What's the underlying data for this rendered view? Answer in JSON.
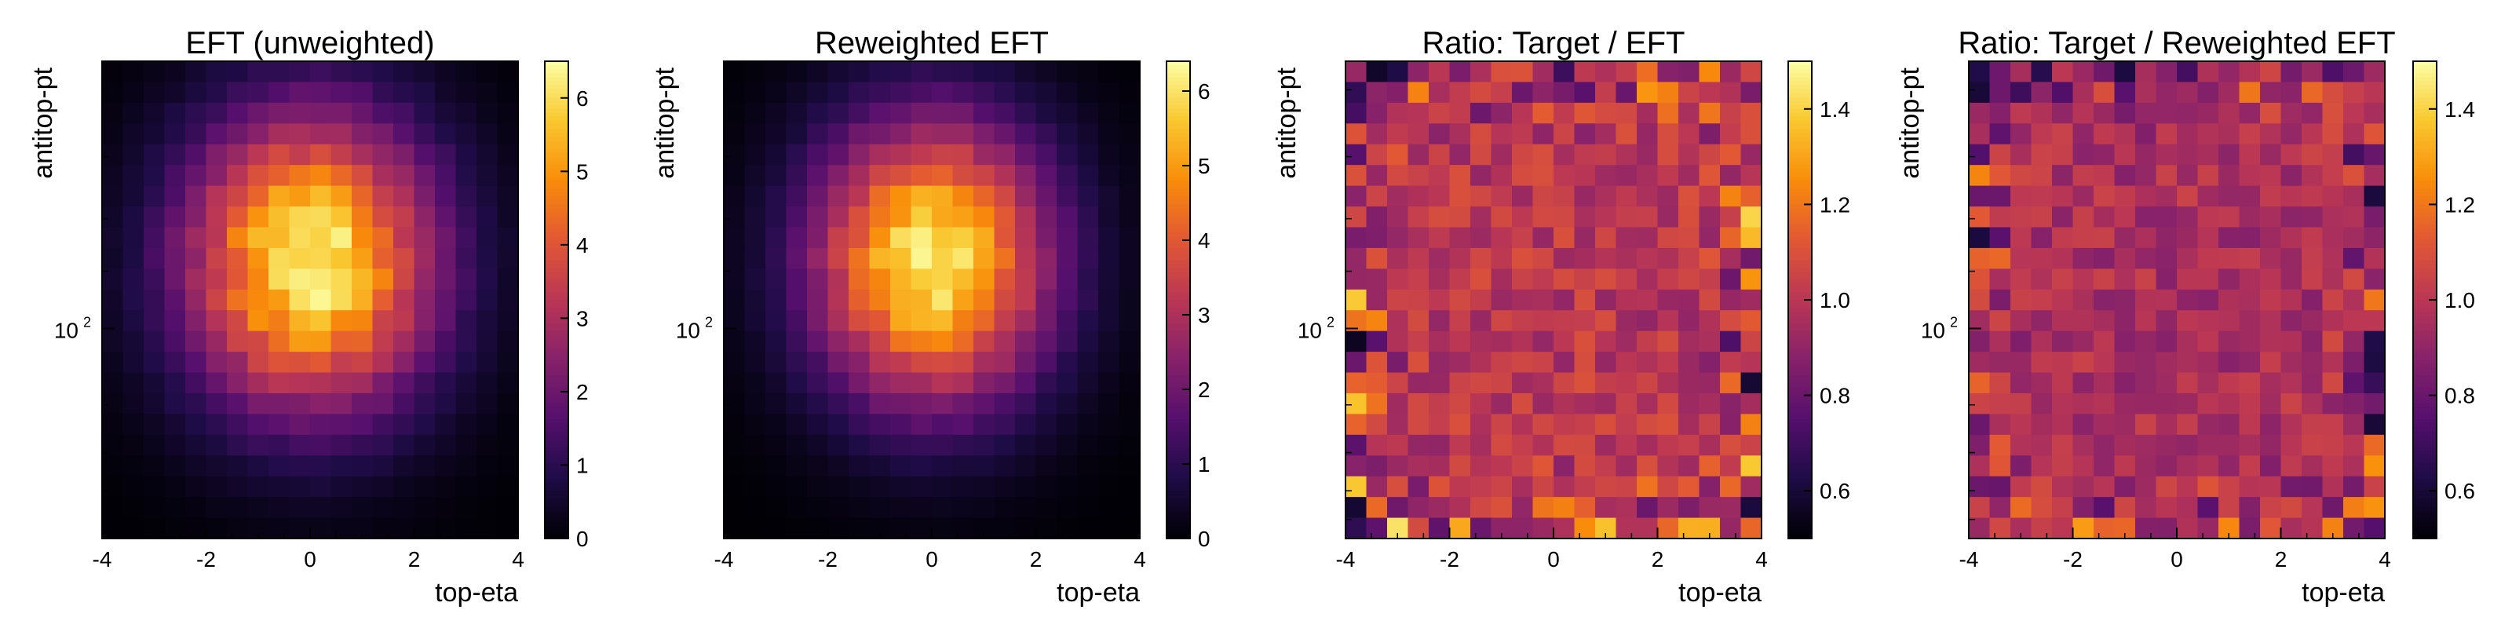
{
  "chart_data": [
    {
      "type": "heatmap",
      "title": "EFT (unweighted)",
      "xlabel": "top-eta",
      "ylabel": "antitop-pt",
      "xlim": [
        -4,
        4
      ],
      "y_scale": "log",
      "y_tick_labels": [
        {
          "base": "10",
          "exp": "2"
        }
      ],
      "colorbar": {
        "range": [
          0,
          6.5
        ],
        "ticks": [
          "0",
          "1",
          "2",
          "3",
          "4",
          "5",
          "6"
        ],
        "colormap": "inferno"
      },
      "grid": false,
      "model": {
        "kind": "gauss",
        "peak": 6.3,
        "x0": 0.0,
        "sx": 1.7,
        "y0": 0.42,
        "sy": 0.22,
        "noise": 0.18
      },
      "seed": 11
    },
    {
      "type": "heatmap",
      "title": "Reweighted EFT",
      "xlabel": "top-eta",
      "ylabel": "antitop-pt",
      "xlim": [
        -4,
        4
      ],
      "y_scale": "log",
      "y_tick_labels": [
        {
          "base": "10",
          "exp": "2"
        }
      ],
      "colorbar": {
        "range": [
          0,
          6.4
        ],
        "ticks": [
          "0",
          "1",
          "2",
          "3",
          "4",
          "5",
          "6"
        ],
        "colormap": "inferno"
      },
      "grid": false,
      "model": {
        "kind": "gauss",
        "peak": 6.2,
        "x0": 0.0,
        "sx": 1.6,
        "y0": 0.42,
        "sy": 0.21,
        "noise": 0.15
      },
      "seed": 23
    },
    {
      "type": "heatmap",
      "title": "Ratio: Target / EFT",
      "xlabel": "top-eta",
      "ylabel": "antitop-pt",
      "xlim": [
        -4,
        4
      ],
      "y_scale": "log",
      "y_tick_labels": [
        {
          "base": "10",
          "exp": "2"
        }
      ],
      "colorbar": {
        "range": [
          0.5,
          1.5
        ],
        "ticks": [
          "0.6",
          "0.8",
          "1.0",
          "1.2",
          "1.4"
        ],
        "colormap": "inferno"
      },
      "grid": false,
      "model": {
        "kind": "ratio",
        "center": 1.0,
        "noise": 0.1,
        "edge": 0.3
      },
      "seed": 37
    },
    {
      "type": "heatmap",
      "title": "Ratio: Target / Reweighted EFT",
      "xlabel": "top-eta",
      "ylabel": "antitop-pt",
      "xlim": [
        -4,
        4
      ],
      "y_scale": "log",
      "y_tick_labels": [
        {
          "base": "10",
          "exp": "2"
        }
      ],
      "colorbar": {
        "range": [
          0.5,
          1.5
        ],
        "ticks": [
          "0.6",
          "0.8",
          "1.0",
          "1.2",
          "1.4"
        ],
        "colormap": "inferno"
      },
      "grid": false,
      "model": {
        "kind": "ratio",
        "center": 0.96,
        "noise": 0.09,
        "edge": 0.3
      },
      "seed": 53
    }
  ],
  "x_tick_labels": [
    "-4",
    "-2",
    "0",
    "2",
    "4"
  ]
}
